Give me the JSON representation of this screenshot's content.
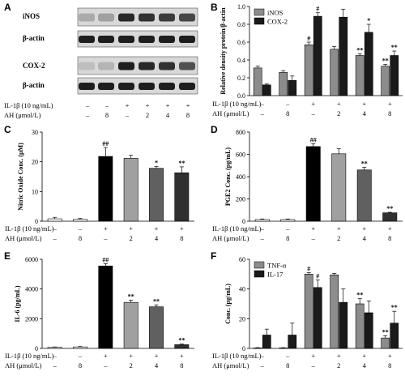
{
  "conditions": {
    "il1b_label": "IL-1β (10 ng/mL)",
    "ah_label": "AH (μmol/L)",
    "il1b_marks": [
      "–",
      "–",
      "+",
      "+",
      "+",
      "+"
    ],
    "ah_marks": [
      "–",
      "8",
      "–",
      "2",
      "4",
      "8"
    ]
  },
  "blots": {
    "letter": "A",
    "rows": [
      {
        "label": "iNOS"
      },
      {
        "label": "β-actin"
      },
      {
        "label": "COX-2"
      },
      {
        "label": "β-actin"
      }
    ]
  },
  "chart_data": [
    {
      "type": "bar",
      "panel": "B",
      "ylabel": "Relative density protein/β-actin",
      "ylim": [
        0,
        1.0
      ],
      "yticks": [
        "0.0",
        "0.2",
        "0.4",
        "0.6",
        "0.8",
        "1.0"
      ],
      "series": [
        {
          "name": "iNOS",
          "color": "#8c8c8c",
          "values": [
            0.31,
            0.26,
            0.57,
            0.52,
            0.45,
            0.33
          ],
          "errors": [
            0.02,
            0.02,
            0.03,
            0.03,
            0.02,
            0.02
          ],
          "sig": [
            "",
            "",
            "#",
            "",
            "**",
            "**"
          ]
        },
        {
          "name": "COX-2",
          "color": "#1a1a1a",
          "values": [
            0.12,
            0.17,
            0.89,
            0.88,
            0.71,
            0.45
          ],
          "errors": [
            0.01,
            0.05,
            0.04,
            0.09,
            0.09,
            0.05
          ],
          "sig": [
            "",
            "",
            "#",
            "",
            "*",
            "**"
          ]
        }
      ],
      "legend": "top-left"
    },
    {
      "type": "bar",
      "panel": "C",
      "ylabel": "Nitric Oxide Conc. (μM)",
      "ylim": [
        0,
        30
      ],
      "yticks": [
        "0",
        "10",
        "20",
        "30"
      ],
      "values": [
        0.8,
        0.6,
        21.8,
        21.2,
        17.8,
        16.3
      ],
      "errors": [
        0.5,
        0.3,
        3.0,
        1.0,
        0.6,
        2.0
      ],
      "colors": [
        "#ffffff",
        "#ffffff",
        "#000000",
        "#a0a0a0",
        "#606060",
        "#303030"
      ],
      "sig": [
        "",
        "",
        "##",
        "",
        "*",
        "**"
      ]
    },
    {
      "type": "bar",
      "panel": "D",
      "ylabel": "PGE2 Conc. (pg/mL)",
      "ylim": [
        0,
        800
      ],
      "yticks": [
        "0",
        "200",
        "400",
        "600",
        "800"
      ],
      "values": [
        15,
        15,
        670,
        605,
        460,
        75
      ],
      "errors": [
        5,
        5,
        25,
        45,
        25,
        5
      ],
      "colors": [
        "#ffffff",
        "#ffffff",
        "#000000",
        "#a0a0a0",
        "#606060",
        "#303030"
      ],
      "sig": [
        "",
        "",
        "##",
        "",
        "**",
        "**"
      ]
    },
    {
      "type": "bar",
      "panel": "E",
      "ylabel": "IL-6 (pg/mL)",
      "ylim": [
        0,
        6000
      ],
      "yticks": [
        "0",
        "2000",
        "4000",
        "6000"
      ],
      "values": [
        80,
        100,
        5550,
        3100,
        2800,
        250
      ],
      "errors": [
        20,
        30,
        150,
        150,
        130,
        40
      ],
      "colors": [
        "#ffffff",
        "#ffffff",
        "#000000",
        "#a0a0a0",
        "#606060",
        "#303030"
      ],
      "sig": [
        "",
        "",
        "##",
        "**",
        "**",
        "**"
      ]
    },
    {
      "type": "bar",
      "panel": "F",
      "ylabel": "Conc. (pg/mL)",
      "ylim": [
        0,
        60
      ],
      "yticks": [
        "0",
        "20",
        "40",
        "60"
      ],
      "series": [
        {
          "name": "TNF-α",
          "color": "#8c8c8c",
          "values": [
            0.3,
            0.3,
            50,
            49.5,
            30,
            7
          ],
          "errors": [
            0.2,
            0.2,
            1,
            1,
            3.5,
            1.5
          ],
          "sig": [
            "",
            "",
            "#",
            "",
            "**",
            "**"
          ]
        },
        {
          "name": "IL-17",
          "color": "#1a1a1a",
          "values": [
            9,
            9,
            41,
            31,
            24,
            17
          ],
          "errors": [
            4,
            8,
            5,
            9,
            8,
            8
          ],
          "sig": [
            "",
            "",
            "#",
            "",
            "",
            "**"
          ]
        }
      ],
      "legend": "top-left"
    }
  ]
}
